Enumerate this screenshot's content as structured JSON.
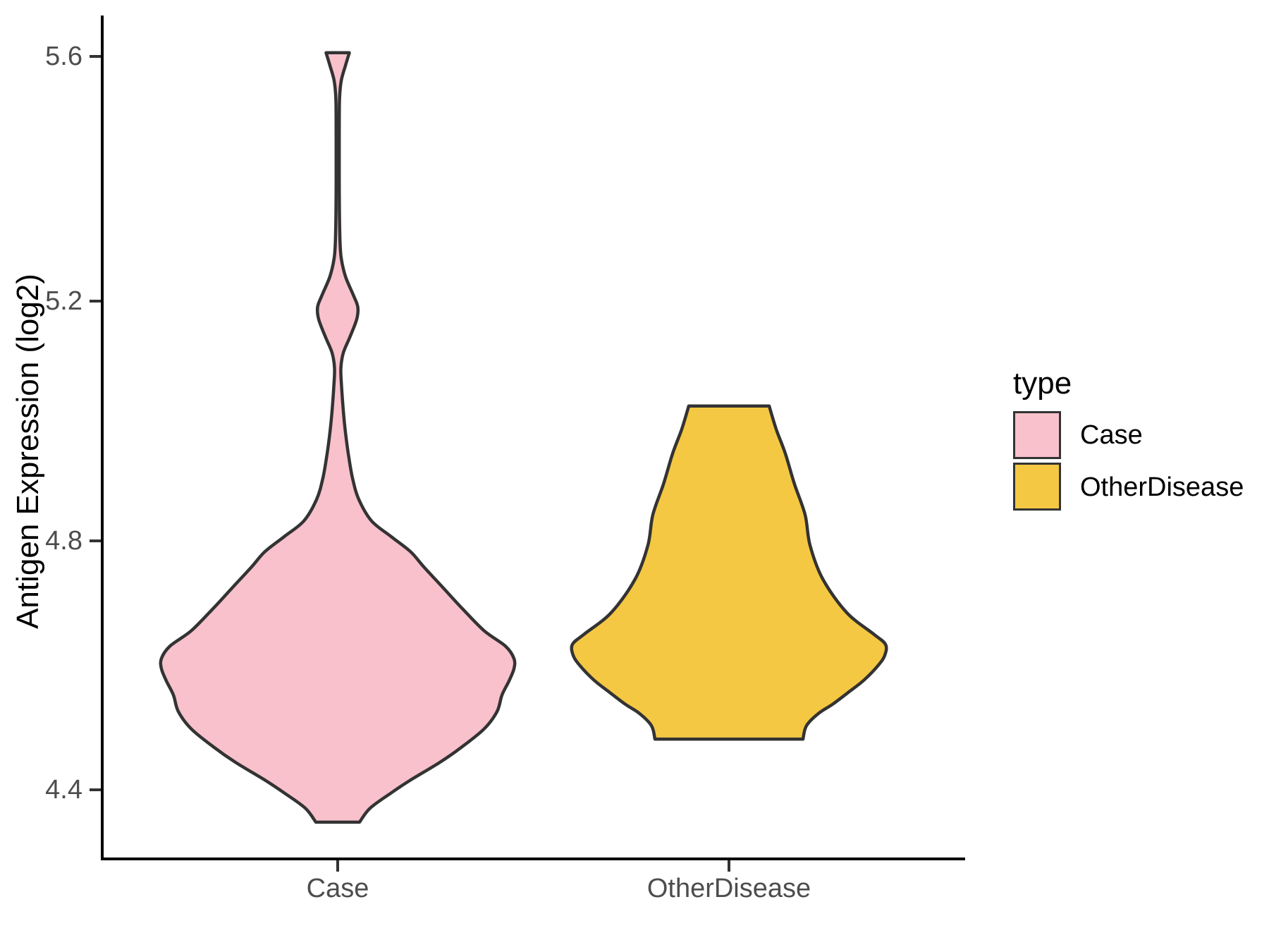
{
  "figure": {
    "y_axis": {
      "title": "Antigen Expression (log2)",
      "tick_labels": [
        "5.6",
        "5.2",
        "4.8",
        "4.4"
      ]
    },
    "x_axis": {
      "tick_labels": [
        "Case",
        "OtherDisease"
      ]
    },
    "legend": {
      "title": "type",
      "entries": [
        {
          "label": "Case",
          "color": "#F8C1CC"
        },
        {
          "label": "OtherDisease",
          "color": "#F5C843"
        }
      ]
    }
  },
  "chart_data": {
    "type": "violin",
    "title": "",
    "xlabel": "",
    "ylabel": "Antigen Expression (log2)",
    "categories": [
      "Case",
      "OtherDisease"
    ],
    "y_ticks": [
      4.4,
      4.8,
      5.2,
      5.6
    ],
    "ylim": [
      4.28,
      5.67
    ],
    "grid": false,
    "legend_position": "right",
    "outline_color": "#333333",
    "series": [
      {
        "name": "Case",
        "fill": "#F8C1CC",
        "min": 4.35,
        "max": 5.61,
        "widest_at": 4.62,
        "profile": [
          [
            5.606,
            16.5
          ],
          [
            5.585,
            11
          ],
          [
            5.56,
            5
          ],
          [
            5.53,
            2.6
          ],
          [
            5.47,
            2.2
          ],
          [
            5.41,
            2.2
          ],
          [
            5.35,
            2.4
          ],
          [
            5.3,
            3.2
          ],
          [
            5.27,
            5
          ],
          [
            5.24,
            11
          ],
          [
            5.21,
            22
          ],
          [
            5.19,
            28.5
          ],
          [
            5.17,
            27
          ],
          [
            5.14,
            17
          ],
          [
            5.115,
            8
          ],
          [
            5.09,
            4.5
          ],
          [
            5.06,
            5.5
          ],
          [
            5.02,
            8
          ],
          [
            4.985,
            11
          ],
          [
            4.95,
            15
          ],
          [
            4.91,
            21
          ],
          [
            4.875,
            30
          ],
          [
            4.84,
            48
          ],
          [
            4.815,
            75
          ],
          [
            4.79,
            103
          ],
          [
            4.765,
            122
          ],
          [
            4.73,
            150
          ],
          [
            4.695,
            178
          ],
          [
            4.66,
            208
          ],
          [
            4.635,
            238
          ],
          [
            4.615,
            250
          ],
          [
            4.598,
            250
          ],
          [
            4.578,
            243
          ],
          [
            4.555,
            233
          ],
          [
            4.528,
            226
          ],
          [
            4.5,
            208
          ],
          [
            4.47,
            176
          ],
          [
            4.445,
            145
          ],
          [
            4.415,
            102
          ],
          [
            4.395,
            76
          ],
          [
            4.37,
            46
          ],
          [
            4.347,
            31
          ]
        ]
      },
      {
        "name": "OtherDisease",
        "fill": "#F5C843",
        "min": 4.48,
        "max": 5.03,
        "widest_at": 4.64,
        "profile": [
          [
            5.028,
            57
          ],
          [
            4.99,
            67
          ],
          [
            4.95,
            80
          ],
          [
            4.9,
            93
          ],
          [
            4.85,
            108
          ],
          [
            4.8,
            115
          ],
          [
            4.745,
            133
          ],
          [
            4.69,
            167
          ],
          [
            4.655,
            205
          ],
          [
            4.638,
            222
          ],
          [
            4.62,
            221
          ],
          [
            4.604,
            212
          ],
          [
            4.58,
            192
          ],
          [
            4.56,
            170
          ],
          [
            4.54,
            147
          ],
          [
            4.525,
            127
          ],
          [
            4.505,
            110
          ],
          [
            4.483,
            105
          ]
        ]
      }
    ]
  }
}
